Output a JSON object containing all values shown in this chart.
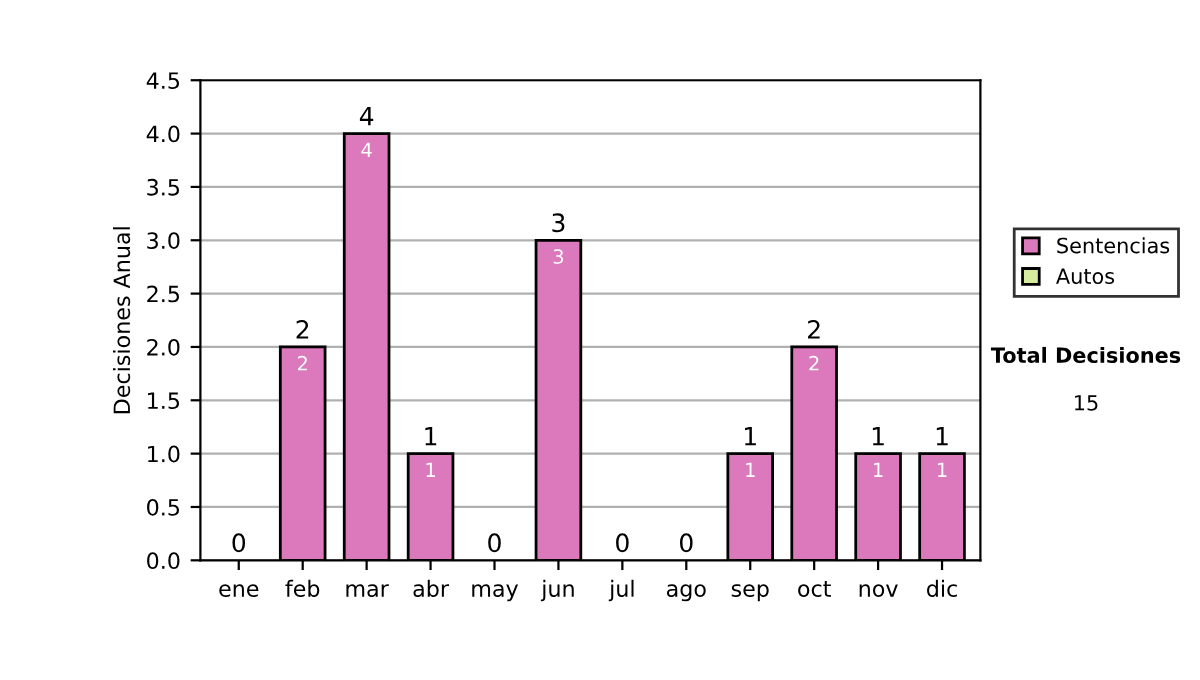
{
  "chart_data": {
    "type": "bar",
    "ylabel": "Decisiones Anual",
    "categories": [
      "ene",
      "feb",
      "mar",
      "abr",
      "may",
      "jun",
      "jul",
      "ago",
      "sep",
      "oct",
      "nov",
      "dic"
    ],
    "series": [
      {
        "name": "Sentencias",
        "color": "#dc78bc",
        "values": [
          0,
          2,
          4,
          1,
          0,
          3,
          0,
          0,
          1,
          2,
          1,
          1
        ],
        "value_labels": [
          null,
          "2",
          "4",
          "1",
          null,
          "3",
          null,
          null,
          "1",
          "2",
          "1",
          "1"
        ]
      },
      {
        "name": "Autos",
        "color": "#d8eca0",
        "values": [
          0,
          0,
          0,
          0,
          0,
          0,
          0,
          0,
          0,
          0,
          0,
          0
        ]
      }
    ],
    "stacked": true,
    "totals": [
      "0",
      "2",
      "4",
      "1",
      "0",
      "3",
      "0",
      "0",
      "1",
      "2",
      "1",
      "1"
    ],
    "ylim": [
      0,
      4.5
    ],
    "yticks": [
      {
        "value": 0,
        "label": "0.0"
      },
      {
        "value": 0.5,
        "label": "0.5"
      },
      {
        "value": 1,
        "label": "1.0"
      },
      {
        "value": 1.5,
        "label": "1.5"
      },
      {
        "value": 2,
        "label": "2.0"
      },
      {
        "value": 2.5,
        "label": "2.5"
      },
      {
        "value": 3,
        "label": "3.0"
      },
      {
        "value": 3.5,
        "label": "3.5"
      },
      {
        "value": 4,
        "label": "4.0"
      },
      {
        "value": 4.5,
        "label": "4.5"
      }
    ],
    "grid": "y",
    "legend": "right",
    "annotations": [
      "Total Decisiones",
      "15"
    ]
  }
}
